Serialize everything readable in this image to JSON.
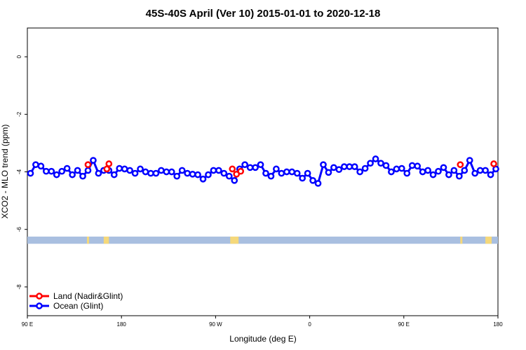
{
  "chart_data": {
    "type": "line",
    "title": "45S-40S April (Ver 10)   2015-01-01 to 2020-12-18",
    "xlabel": "Longitude (deg E)",
    "ylabel": "XCO2 - MLO trend (ppm)",
    "x_range_deg": [
      90,
      450
    ],
    "x_ticks": [
      {
        "value": 90,
        "label": "90 E"
      },
      {
        "value": 180,
        "label": "180"
      },
      {
        "value": 270,
        "label": "90 W"
      },
      {
        "value": 360,
        "label": "0"
      },
      {
        "value": 450,
        "label": "90 E"
      },
      {
        "value": 540,
        "label": "180"
      }
    ],
    "x_range_plot": [
      90,
      540
    ],
    "ylim": [
      -9,
      1
    ],
    "y_ticks": [
      0,
      -2,
      -4,
      -6,
      -8
    ],
    "series": [
      {
        "name": "Ocean (Glint)",
        "color": "#0000ff",
        "x": [
          93,
          98,
          103,
          108,
          113,
          118,
          123,
          128,
          133,
          138,
          143,
          148,
          153,
          158,
          163,
          168,
          173,
          178,
          183,
          188,
          193,
          198,
          203,
          208,
          213,
          218,
          223,
          228,
          233,
          238,
          243,
          248,
          253,
          258,
          263,
          268,
          273,
          278,
          283,
          288,
          293,
          298,
          303,
          308,
          313,
          318,
          323,
          328,
          333,
          338,
          343,
          348,
          353,
          358,
          363,
          368,
          373,
          378,
          383,
          388,
          393,
          398,
          403,
          408,
          413,
          418,
          423,
          428,
          433,
          438,
          443,
          448,
          453,
          458,
          463,
          468,
          473,
          478,
          483,
          488,
          493,
          498,
          503,
          508,
          513,
          518,
          523,
          528,
          533,
          538
        ],
        "y": [
          -4.05,
          -3.75,
          -3.8,
          -3.98,
          -3.98,
          -4.1,
          -3.98,
          -3.88,
          -4.1,
          -3.95,
          -4.15,
          -3.95,
          -3.6,
          -4.05,
          -3.95,
          -3.95,
          -4.1,
          -3.88,
          -3.9,
          -3.95,
          -4.05,
          -3.9,
          -4.0,
          -4.05,
          -4.05,
          -3.95,
          -4.0,
          -4.0,
          -4.15,
          -3.95,
          -4.05,
          -4.08,
          -4.1,
          -4.25,
          -4.1,
          -3.95,
          -3.95,
          -4.05,
          -4.15,
          -4.3,
          -3.9,
          -3.75,
          -3.85,
          -3.85,
          -3.75,
          -4.05,
          -4.15,
          -3.9,
          -4.05,
          -4.0,
          -4.0,
          -4.05,
          -4.22,
          -4.05,
          -4.3,
          -4.4,
          -3.75,
          -4.02,
          -3.85,
          -3.92,
          -3.82,
          -3.82,
          -3.82,
          -4.0,
          -3.88,
          -3.7,
          -3.55,
          -3.7,
          -3.78,
          -4.0,
          -3.9,
          -3.88,
          -4.05,
          -3.78,
          -3.8,
          -4.0,
          -3.95,
          -4.1,
          -3.98,
          -3.85,
          -4.1,
          -3.95,
          -4.15,
          -3.95,
          -3.6,
          -4.05,
          -3.95,
          -3.95,
          -4.1,
          -3.9
        ]
      },
      {
        "name": "Land (Nadir&Glint)",
        "color": "#ff0000",
        "points": [
          {
            "x": 148,
            "y": -3.75
          },
          {
            "x": 166,
            "y": -3.9
          },
          {
            "x": 168,
            "y": -3.72
          },
          {
            "x": 286,
            "y": -3.9
          },
          {
            "x": 290,
            "y": -4.08
          },
          {
            "x": 294,
            "y": -3.98
          },
          {
            "x": 504,
            "y": -3.75
          },
          {
            "x": 536,
            "y": -3.72
          }
        ]
      }
    ],
    "land_band": {
      "y_top": -6.25,
      "y_bottom": -6.5,
      "ocean_color": "#a9bfe0",
      "land_color": "#f5d87a",
      "land_spans": [
        [
          147,
          149
        ],
        [
          163,
          168
        ],
        [
          284,
          292
        ],
        [
          504,
          506
        ],
        [
          528,
          534
        ]
      ]
    },
    "legend_position": "bottom-left",
    "grid": false
  }
}
